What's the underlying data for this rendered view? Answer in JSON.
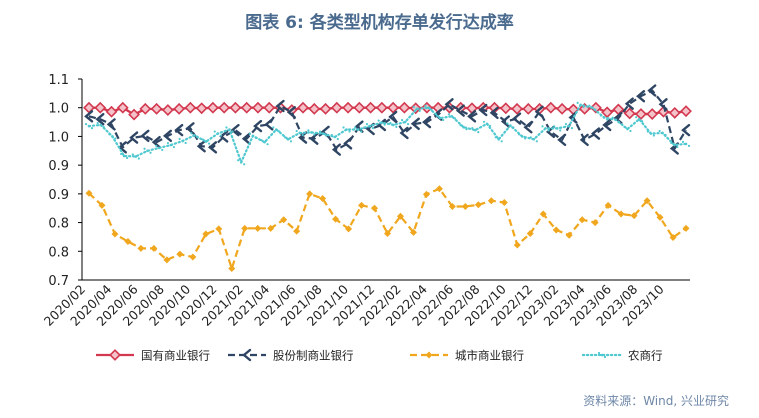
{
  "title": "图表 6: 各类型机构存单发行达成率",
  "source": "资料来源：Wind, 兴业研究",
  "chart_data": {
    "type": "line",
    "ytick_labels": [
      "1.1",
      "1.0",
      "1.0",
      "0.9",
      "0.9",
      "0.8",
      "0.8",
      "0.7"
    ],
    "ylim": [
      0.7,
      1.05
    ],
    "xtick_labels": [
      "2020/02",
      "2020/04",
      "2020/06",
      "2020/08",
      "2020/10",
      "2020/12",
      "2021/02",
      "2021/04",
      "2021/06",
      "2021/08",
      "2021/10",
      "2021/12",
      "2022/02",
      "2022/04",
      "2022/06",
      "2022/08",
      "2022/10",
      "2022/12",
      "2023/02",
      "2023/04",
      "2023/06",
      "2023/08",
      "2023/10"
    ],
    "series": [
      {
        "name": "国有商业银行",
        "color": "#d2384f",
        "style": "diamond",
        "values": [
          1.0,
          1.0,
          0.993,
          1.0,
          0.988,
          0.998,
          0.998,
          0.996,
          0.998,
          1.0,
          0.999,
          1.0,
          1.0,
          1.0,
          1.0,
          1.0,
          1.0,
          1.0,
          0.996,
          1.0,
          0.998,
          0.998,
          1.0,
          1.0,
          1.0,
          1.0,
          1.0,
          1.0,
          1.0,
          0.999,
          1.0,
          1.0,
          1.0,
          1.0,
          0.999,
          1.0,
          1.0,
          0.999,
          0.998,
          0.998,
          0.998,
          1.0,
          0.998,
          0.997,
          0.998,
          1.0,
          0.992,
          0.997,
          0.99,
          0.989,
          0.989,
          0.993,
          0.991,
          0.994
        ]
      },
      {
        "name": "股份制商业银行",
        "color": "#2e4563",
        "style": "dash",
        "values": [
          0.985,
          0.98,
          0.971,
          0.931,
          0.948,
          0.951,
          0.94,
          0.951,
          0.961,
          0.964,
          0.933,
          0.931,
          0.95,
          0.961,
          0.946,
          0.968,
          0.971,
          1.003,
          0.992,
          0.948,
          0.946,
          0.958,
          0.927,
          0.938,
          0.967,
          0.963,
          0.97,
          0.984,
          0.956,
          0.972,
          0.975,
          0.988,
          1.006,
          0.995,
          0.985,
          0.996,
          0.991,
          0.976,
          0.981,
          0.966,
          0.993,
          0.958,
          0.944,
          0.983,
          0.944,
          0.955,
          0.97,
          0.982,
          1.007,
          1.02,
          1.03,
          1.006,
          0.929,
          0.961
        ]
      },
      {
        "name": "城市商业银行",
        "color": "#f0a71e",
        "style": "dash",
        "values": [
          0.851,
          0.83,
          0.78,
          0.767,
          0.755,
          0.755,
          0.735,
          0.745,
          0.74,
          0.78,
          0.789,
          0.72,
          0.79,
          0.79,
          0.79,
          0.805,
          0.785,
          0.85,
          0.842,
          0.806,
          0.789,
          0.83,
          0.825,
          0.781,
          0.811,
          0.783,
          0.849,
          0.859,
          0.828,
          0.828,
          0.831,
          0.838,
          0.835,
          0.761,
          0.781,
          0.815,
          0.787,
          0.778,
          0.805,
          0.8,
          0.83,
          0.815,
          0.812,
          0.838,
          0.809,
          0.774,
          0.79
        ]
      },
      {
        "name": "农商行",
        "color": "#4fc8d0",
        "style": "dot",
        "values": [
          0.968,
          0.97,
          0.95,
          0.916,
          0.915,
          0.925,
          0.93,
          0.935,
          0.942,
          0.952,
          0.941,
          0.955,
          0.962,
          0.905,
          0.951,
          0.94,
          0.962,
          0.945,
          0.956,
          0.957,
          0.955,
          0.949,
          0.962,
          0.962,
          0.968,
          0.974,
          0.97,
          0.975,
          0.998,
          1.0,
          0.982,
          0.985,
          0.966,
          0.961,
          0.972,
          0.945,
          0.969,
          0.95,
          0.945,
          0.964,
          0.964,
          0.968,
          1.005,
          1.0,
          0.983,
          0.979,
          0.963,
          0.98,
          0.955,
          0.956,
          0.935,
          0.937
        ]
      }
    ],
    "legend_position": "bottom"
  }
}
